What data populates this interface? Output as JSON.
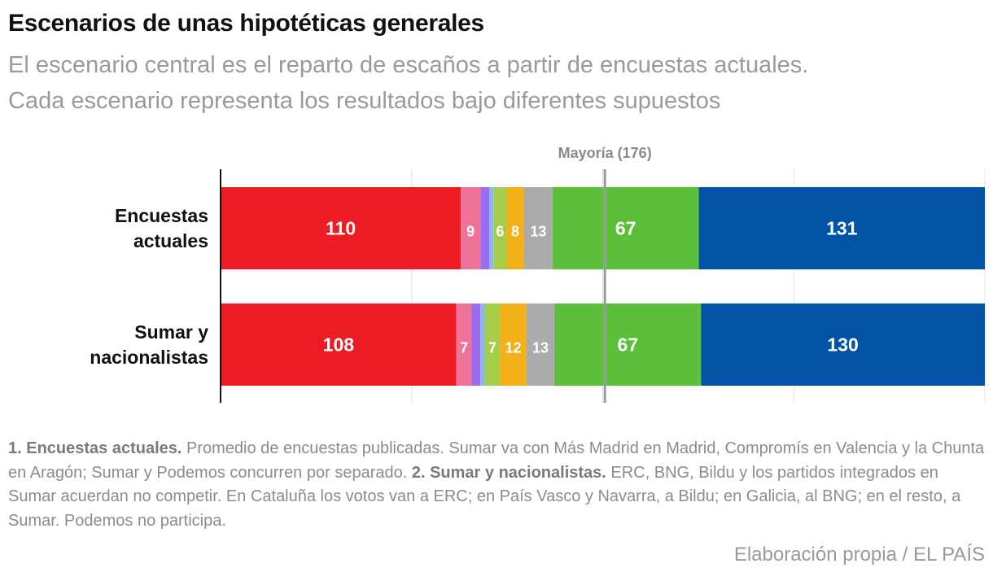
{
  "title": "Escenarios de unas hipotéticas generales",
  "subtitle_line1": "El escenario central es el reparto de escaños a partir de encuestas actuales.",
  "subtitle_line2": "Cada escenario representa los resultados bajo diferentes supuestos",
  "chart_data": {
    "type": "bar",
    "orientation": "horizontal",
    "stacked": true,
    "xlim": [
      0,
      350
    ],
    "grid": true,
    "majority_label": "Mayoría (176)",
    "majority_value": 176,
    "categories": [
      [
        "Encuestas",
        "actuales"
      ],
      [
        "Sumar y",
        "nacionalistas"
      ]
    ],
    "colors": [
      "#ec1c24",
      "#ef7398",
      "#9b6cf0",
      "#8bb6ea",
      "#a4cd4a",
      "#f3b019",
      "#ababab",
      "#5bbf3a",
      "#0053a5"
    ],
    "rows": [
      {
        "values": [
          110,
          9,
          4,
          2,
          6,
          8,
          13,
          67,
          131
        ],
        "labels": [
          "110",
          "9",
          "",
          "",
          "6",
          "8",
          "13",
          "67",
          "131"
        ]
      },
      {
        "values": [
          108,
          7,
          4,
          2,
          7,
          12,
          13,
          67,
          130
        ],
        "labels": [
          "108",
          "7",
          "",
          "",
          "7",
          "12",
          "13",
          "67",
          "130"
        ]
      }
    ]
  },
  "notes": {
    "n1_label": "1. Encuestas actuales.",
    "n1_text": " Promedio de encuestas publicadas. Sumar va con Más Madrid en Madrid, Compromís en Valencia y la Chunta en Aragón; Sumar y Podemos concurren por separado. ",
    "n2_label": "2. Sumar y nacionalistas.",
    "n2_text": " ERC, BNG, Bildu y los partidos integrados en Sumar acuerdan no competir. En Cataluña los votos van a ERC; en País Vasco y Navarra, a Bildu; en Galicia, al BNG; en el resto, a Sumar. Podemos no participa."
  },
  "source": "Elaboración propia / EL PAÍS"
}
